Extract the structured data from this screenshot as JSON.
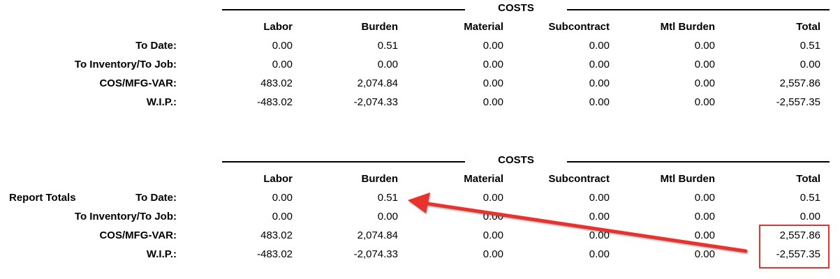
{
  "sections": [
    {
      "title": "COSTS",
      "report_label": "",
      "columns": [
        "Labor",
        "Burden",
        "Material",
        "Subcontract",
        "Mtl Burden",
        "Total"
      ],
      "rows": [
        {
          "label": "To Date:",
          "values": [
            "0.00",
            "0.51",
            "0.00",
            "0.00",
            "0.00",
            "0.51"
          ]
        },
        {
          "label": "To Inventory/To Job:",
          "values": [
            "0.00",
            "0.00",
            "0.00",
            "0.00",
            "0.00",
            "0.00"
          ]
        },
        {
          "label": "COS/MFG-VAR:",
          "values": [
            "483.02",
            "2,074.84",
            "0.00",
            "0.00",
            "0.00",
            "2,557.86"
          ]
        },
        {
          "label": "W.I.P.:",
          "values": [
            "-483.02",
            "-2,074.33",
            "0.00",
            "0.00",
            "0.00",
            "-2,557.35"
          ]
        }
      ]
    },
    {
      "title": "COSTS",
      "report_label": "Report Totals",
      "columns": [
        "Labor",
        "Burden",
        "Material",
        "Subcontract",
        "Mtl Burden",
        "Total"
      ],
      "rows": [
        {
          "label": "To Date:",
          "values": [
            "0.00",
            "0.51",
            "0.00",
            "0.00",
            "0.00",
            "0.51"
          ]
        },
        {
          "label": "To Inventory/To Job:",
          "values": [
            "0.00",
            "0.00",
            "0.00",
            "0.00",
            "0.00",
            "0.00"
          ]
        },
        {
          "label": "COS/MFG-VAR:",
          "values": [
            "483.02",
            "2,074.84",
            "0.00",
            "0.00",
            "0.00",
            "2,557.86"
          ]
        },
        {
          "label": "W.I.P.:",
          "values": [
            "-483.02",
            "-2,074.33",
            "0.00",
            "0.00",
            "0.00",
            "-2,557.35"
          ]
        }
      ]
    }
  ],
  "annotation": {
    "color": "#e8312f"
  }
}
